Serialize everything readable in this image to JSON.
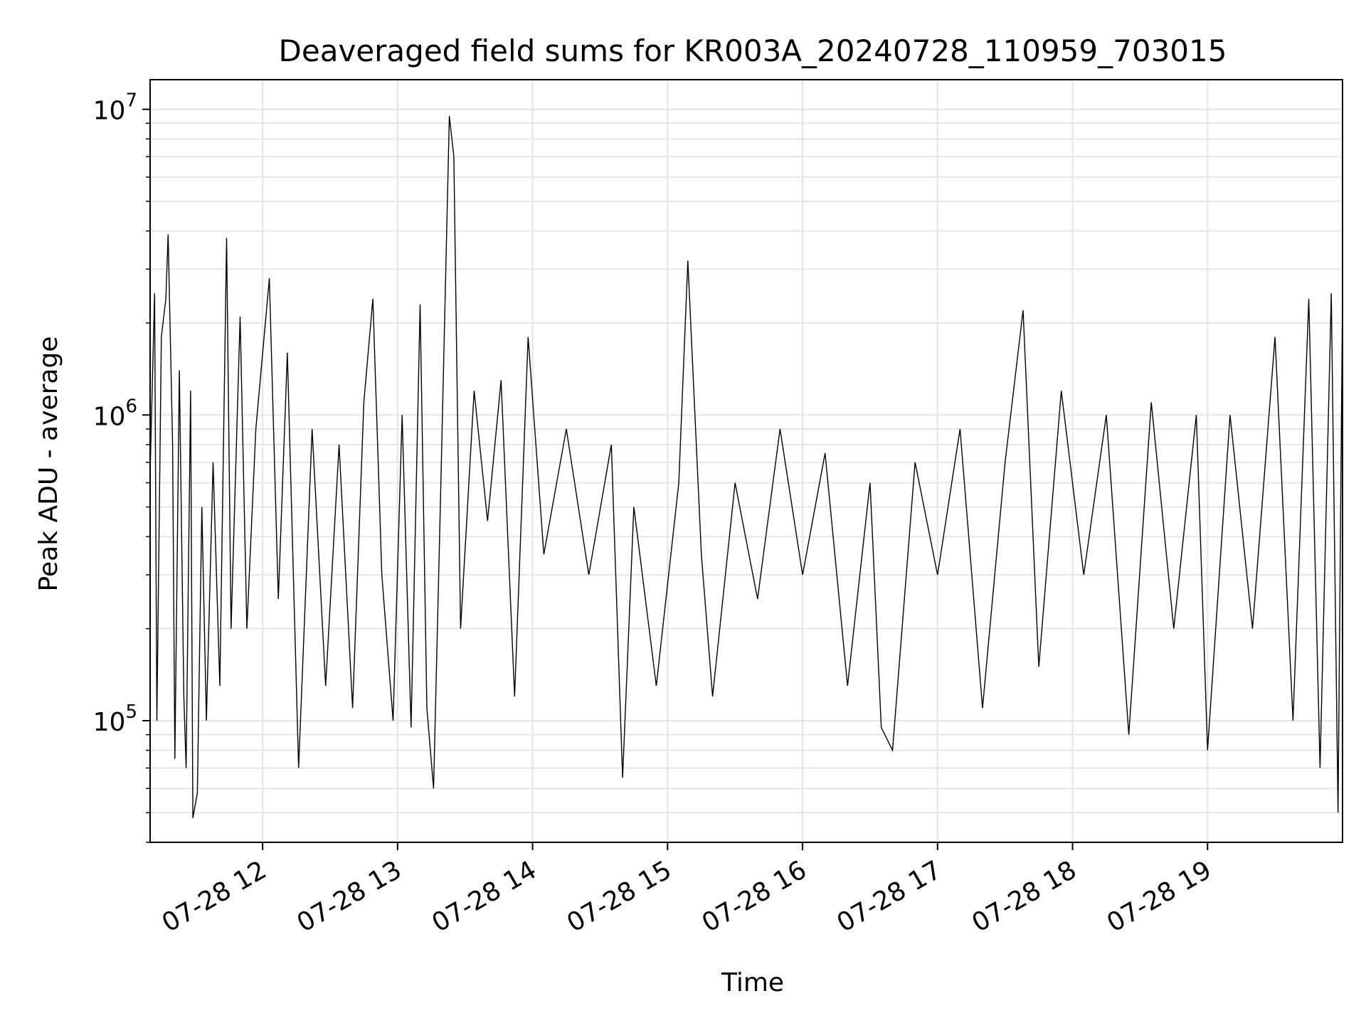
{
  "chart_data": {
    "type": "line",
    "title": "Deaveraged field sums for KR003A_20240728_110959_703015",
    "xlabel": "Time",
    "ylabel": "Peak ADU - average",
    "y_scale": "log",
    "ylim": [
      40000,
      12500000
    ],
    "xlim": [
      "2024-07-28T11:10:00",
      "2024-07-28T20:00:00"
    ],
    "x_ticks": [
      {
        "value": "2024-07-28T12:00:00",
        "label": "07-28 12"
      },
      {
        "value": "2024-07-28T13:00:00",
        "label": "07-28 13"
      },
      {
        "value": "2024-07-28T14:00:00",
        "label": "07-28 14"
      },
      {
        "value": "2024-07-28T15:00:00",
        "label": "07-28 15"
      },
      {
        "value": "2024-07-28T16:00:00",
        "label": "07-28 16"
      },
      {
        "value": "2024-07-28T17:00:00",
        "label": "07-28 17"
      },
      {
        "value": "2024-07-28T18:00:00",
        "label": "07-28 18"
      },
      {
        "value": "2024-07-28T19:00:00",
        "label": "07-28 19"
      }
    ],
    "y_ticks": [
      {
        "value": 100000,
        "base": "10",
        "exp": "5"
      },
      {
        "value": 1000000,
        "base": "10",
        "exp": "6"
      },
      {
        "value": 10000000,
        "base": "10",
        "exp": "7"
      }
    ],
    "grid": true,
    "line_color": "#000000",
    "grid_color": "#e6e6e6",
    "series": [
      {
        "values": [
          [
            "2024-07-28T11:10:00",
            650000
          ],
          [
            "2024-07-28T11:12:00",
            2500000
          ],
          [
            "2024-07-28T11:13:00",
            100000
          ],
          [
            "2024-07-28T11:15:00",
            1800000
          ],
          [
            "2024-07-28T11:17:00",
            2400000
          ],
          [
            "2024-07-28T11:18:00",
            3900000
          ],
          [
            "2024-07-28T11:20:00",
            800000
          ],
          [
            "2024-07-28T11:21:00",
            75000
          ],
          [
            "2024-07-28T11:23:00",
            1400000
          ],
          [
            "2024-07-28T11:25:00",
            120000
          ],
          [
            "2024-07-28T11:26:00",
            70000
          ],
          [
            "2024-07-28T11:28:00",
            1200000
          ],
          [
            "2024-07-28T11:29:00",
            48000
          ],
          [
            "2024-07-28T11:31:00",
            58000
          ],
          [
            "2024-07-28T11:33:00",
            500000
          ],
          [
            "2024-07-28T11:35:00",
            100000
          ],
          [
            "2024-07-28T11:38:00",
            700000
          ],
          [
            "2024-07-28T11:41:00",
            130000
          ],
          [
            "2024-07-28T11:44:00",
            3800000
          ],
          [
            "2024-07-28T11:46:00",
            200000
          ],
          [
            "2024-07-28T11:50:00",
            2100000
          ],
          [
            "2024-07-28T11:53:00",
            200000
          ],
          [
            "2024-07-28T11:57:00",
            900000
          ],
          [
            "2024-07-28T12:03:00",
            2800000
          ],
          [
            "2024-07-28T12:07:00",
            250000
          ],
          [
            "2024-07-28T12:11:00",
            1600000
          ],
          [
            "2024-07-28T12:16:00",
            70000
          ],
          [
            "2024-07-28T12:22:00",
            900000
          ],
          [
            "2024-07-28T12:28:00",
            130000
          ],
          [
            "2024-07-28T12:34:00",
            800000
          ],
          [
            "2024-07-28T12:40:00",
            110000
          ],
          [
            "2024-07-28T12:45:00",
            1100000
          ],
          [
            "2024-07-28T12:49:00",
            2400000
          ],
          [
            "2024-07-28T12:53:00",
            300000
          ],
          [
            "2024-07-28T12:58:00",
            100000
          ],
          [
            "2024-07-28T13:02:00",
            1000000
          ],
          [
            "2024-07-28T13:06:00",
            95000
          ],
          [
            "2024-07-28T13:10:00",
            2300000
          ],
          [
            "2024-07-28T13:13:00",
            110000
          ],
          [
            "2024-07-28T13:16:00",
            60000
          ],
          [
            "2024-07-28T13:19:00",
            500000
          ],
          [
            "2024-07-28T13:23:00",
            9500000
          ],
          [
            "2024-07-28T13:25:00",
            7000000
          ],
          [
            "2024-07-28T13:28:00",
            200000
          ],
          [
            "2024-07-28T13:34:00",
            1200000
          ],
          [
            "2024-07-28T13:40:00",
            450000
          ],
          [
            "2024-07-28T13:46:00",
            1300000
          ],
          [
            "2024-07-28T13:52:00",
            120000
          ],
          [
            "2024-07-28T13:58:00",
            1800000
          ],
          [
            "2024-07-28T14:05:00",
            350000
          ],
          [
            "2024-07-28T14:15:00",
            900000
          ],
          [
            "2024-07-28T14:25:00",
            300000
          ],
          [
            "2024-07-28T14:35:00",
            800000
          ],
          [
            "2024-07-28T14:40:00",
            65000
          ],
          [
            "2024-07-28T14:45:00",
            500000
          ],
          [
            "2024-07-28T14:55:00",
            130000
          ],
          [
            "2024-07-28T15:05:00",
            600000
          ],
          [
            "2024-07-28T15:09:00",
            3200000
          ],
          [
            "2024-07-28T15:15:00",
            350000
          ],
          [
            "2024-07-28T15:20:00",
            120000
          ],
          [
            "2024-07-28T15:30:00",
            600000
          ],
          [
            "2024-07-28T15:40:00",
            250000
          ],
          [
            "2024-07-28T15:50:00",
            900000
          ],
          [
            "2024-07-28T16:00:00",
            300000
          ],
          [
            "2024-07-28T16:10:00",
            750000
          ],
          [
            "2024-07-28T16:20:00",
            130000
          ],
          [
            "2024-07-28T16:30:00",
            600000
          ],
          [
            "2024-07-28T16:35:00",
            95000
          ],
          [
            "2024-07-28T16:40:00",
            80000
          ],
          [
            "2024-07-28T16:50:00",
            700000
          ],
          [
            "2024-07-28T17:00:00",
            300000
          ],
          [
            "2024-07-28T17:10:00",
            900000
          ],
          [
            "2024-07-28T17:20:00",
            110000
          ],
          [
            "2024-07-28T17:30:00",
            700000
          ],
          [
            "2024-07-28T17:38:00",
            2200000
          ],
          [
            "2024-07-28T17:45:00",
            150000
          ],
          [
            "2024-07-28T17:55:00",
            1200000
          ],
          [
            "2024-07-28T18:05:00",
            300000
          ],
          [
            "2024-07-28T18:15:00",
            1000000
          ],
          [
            "2024-07-28T18:25:00",
            90000
          ],
          [
            "2024-07-28T18:35:00",
            1100000
          ],
          [
            "2024-07-28T18:45:00",
            200000
          ],
          [
            "2024-07-28T18:55:00",
            1000000
          ],
          [
            "2024-07-28T19:00:00",
            80000
          ],
          [
            "2024-07-28T19:10:00",
            1000000
          ],
          [
            "2024-07-28T19:20:00",
            200000
          ],
          [
            "2024-07-28T19:30:00",
            1800000
          ],
          [
            "2024-07-28T19:38:00",
            100000
          ],
          [
            "2024-07-28T19:45:00",
            2400000
          ],
          [
            "2024-07-28T19:50:00",
            70000
          ],
          [
            "2024-07-28T19:55:00",
            2500000
          ],
          [
            "2024-07-28T19:58:00",
            50000
          ],
          [
            "2024-07-28T20:00:00",
            2500000
          ]
        ]
      }
    ]
  }
}
